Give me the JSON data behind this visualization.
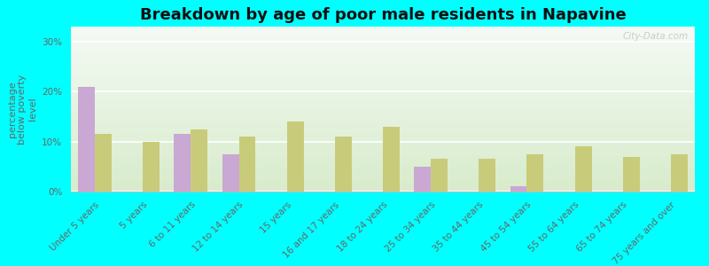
{
  "title": "Breakdown by age of poor male residents in Napavine",
  "ylabel": "percentage\nbelow poverty\nlevel",
  "categories": [
    "Under 5 years",
    "5 years",
    "6 to 11 years",
    "12 to 14 years",
    "15 years",
    "16 and 17 years",
    "18 to 24 years",
    "25 to 34 years",
    "35 to 44 years",
    "45 to 54 years",
    "55 to 64 years",
    "65 to 74 years",
    "75 years and over"
  ],
  "napavine": [
    21.0,
    0,
    11.5,
    7.5,
    0,
    0,
    0,
    5.0,
    0,
    1.0,
    0,
    0,
    0
  ],
  "washington": [
    11.5,
    10.0,
    12.5,
    11.0,
    14.0,
    11.0,
    13.0,
    6.5,
    6.5,
    7.5,
    9.0,
    7.0,
    7.5
  ],
  "napavine_color": "#c9a8d4",
  "washington_color": "#c8cc7a",
  "background_color": "#00ffff",
  "yticks": [
    0,
    10,
    20,
    30
  ],
  "ylim": [
    0,
    33
  ],
  "bar_width": 0.35,
  "title_fontsize": 13,
  "axis_label_fontsize": 8,
  "tick_fontsize": 7.5,
  "watermark": "City-Data.com",
  "plot_bg_top": "#f5faf5",
  "plot_bg_bottom": "#d8eccc"
}
